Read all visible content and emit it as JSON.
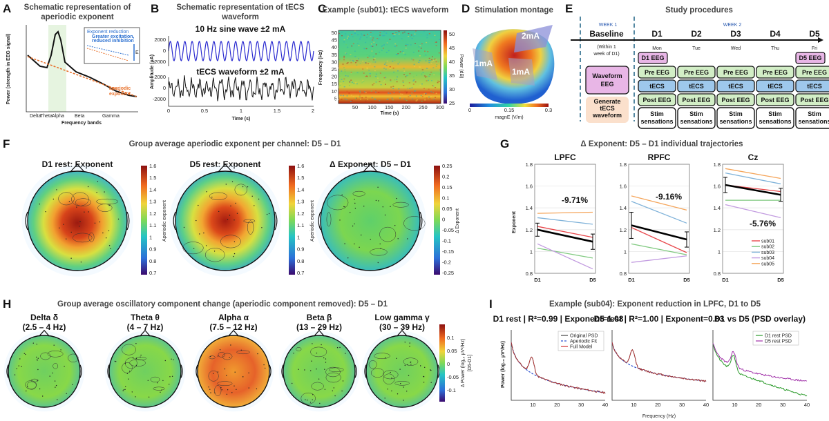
{
  "panels": {
    "A": {
      "label": "A",
      "title": [
        "Schematic representation of",
        "aperiodic exponent"
      ],
      "ylabel": "Power (strength in EEG signal)",
      "xlabel": "Frequency bands",
      "bands": [
        "Delta",
        "Theta",
        "Alpha",
        "Beta",
        "Gamma"
      ],
      "aperiodic_label": [
        "aperiodic",
        "exponent"
      ],
      "inset": [
        "Exponent reduction",
        "Greater excitation,",
        "reduced inhibition"
      ],
      "inset_e": "E"
    },
    "B": {
      "label": "B",
      "title": [
        "Schematic representation of tECS",
        "waveform"
      ],
      "sine_label": "10 Hz sine wave ±2 mA",
      "tecs_label": "tECS waveform ±2 mA",
      "ylabel": "Amplitude (μA)",
      "xlabel": "Time (s)",
      "yticks": [
        "2000",
        "0",
        "-2000",
        "2000",
        "0",
        "-2000"
      ],
      "xticks": [
        "0",
        "0.5",
        "1",
        "1.5",
        "2"
      ]
    },
    "C": {
      "label": "C",
      "title": "Example (sub01): tECS waveform",
      "ylabel": "Frequency (Hz)",
      "xlabel": "Time (s)",
      "yticks": [
        "50",
        "45",
        "40",
        "35",
        "30",
        "25",
        "20",
        "15",
        "10",
        "5"
      ],
      "xticks": [
        "50",
        "100",
        "150",
        "200",
        "250",
        "300"
      ],
      "bands": [
        "γ",
        "β",
        "α",
        "θ",
        "δ"
      ],
      "cbar_label": "Power (dB)",
      "cbar_ticks": [
        "50",
        "45",
        "40",
        "35",
        "30",
        "25"
      ]
    },
    "D": {
      "label": "D",
      "title": "Stimulation montage",
      "currents": [
        "2mA",
        "1mA",
        "1mA"
      ],
      "cbar_ticks": [
        "0",
        "0.15",
        "0.3"
      ],
      "cbar_label": "magnE (V/m)"
    },
    "E": {
      "label": "E",
      "title": "Study procedures",
      "week1": "WEEK 1",
      "week2": "WEEK 2",
      "baseline": "Baseline",
      "baseline_note": [
        "(Within 1",
        "week of D1)"
      ],
      "days": [
        "D1",
        "D2",
        "D3",
        "D4",
        "D5"
      ],
      "weekdays": [
        "Mon",
        "Tue",
        "Wed",
        "Thu",
        "Fri"
      ],
      "d1_eeg": "D1 EEG",
      "d5_eeg": "D5 EEG",
      "waveform_eeg": [
        "Waveform",
        "EEG"
      ],
      "generate": [
        "Generate",
        "tECS",
        "waveform"
      ],
      "pre": "Pre EEG",
      "tecs": "tECS",
      "post": "Post EEG",
      "stim": [
        "Stim",
        "sensations"
      ]
    },
    "F": {
      "label": "F",
      "title": "Group average aperiodic exponent per channel: D5 – D1",
      "maps": [
        {
          "title": "D1 rest: Exponent",
          "cbar_label": "Aperiodic exponent",
          "ticks": [
            "1.6",
            "1.5",
            "1.4",
            "1.3",
            "1.2",
            "1.1",
            "1",
            "0.9",
            "0.8",
            "0.7"
          ]
        },
        {
          "title": "D5 rest: Exponent",
          "cbar_label": "Aperiodic exponent",
          "ticks": [
            "1.6",
            "1.5",
            "1.4",
            "1.3",
            "1.2",
            "1.1",
            "1",
            "0.9",
            "0.8",
            "0.7"
          ]
        },
        {
          "title": "Δ Exponent: D5 – D1",
          "cbar_label": "Δ Exponent",
          "ticks": [
            "0.25",
            "0.2",
            "0.15",
            "0.1",
            "0.05",
            "0",
            "-0.05",
            "-0.1",
            "-0.15",
            "-0.2",
            "-0.25"
          ]
        }
      ]
    },
    "G": {
      "label": "G",
      "title": "Δ Exponent: D5 – D1 individual trajectories",
      "ylabel": "Exponent",
      "yticks": [
        "1.8",
        "1.6",
        "1.4",
        "1.2",
        "1",
        "0.8"
      ],
      "xticks": [
        "D1",
        "D5"
      ]
    },
    "H": {
      "label": "H",
      "title": "Group average oscillatory component change (aperiodic component removed): D5 – D1",
      "maps": [
        {
          "name": "Delta δ",
          "range": "(2.5 – 4 Hz)"
        },
        {
          "name": "Theta θ",
          "range": "(4 – 7 Hz)"
        },
        {
          "name": "Alpha α",
          "range": "(7.5 – 12 Hz)"
        },
        {
          "name": "Beta β",
          "range": "(13 – 29 Hz)"
        },
        {
          "name": "Low gamma γ",
          "range": "(30 – 39 Hz)"
        }
      ],
      "cbar_label": [
        "Δ Power (log₁₀ μV²/Hz)",
        "[D5-D1]"
      ],
      "cbar_ticks": [
        "0.1",
        "0.05",
        "0",
        "-0.05",
        "-0.1"
      ]
    },
    "I": {
      "label": "I",
      "title": "Example (sub04): Exponent reduction in LPFC, D1 to D5",
      "ylabel": "Power (log₁₀ μV²/Hz)",
      "xlabel": "Frequency (Hz)",
      "xticks": [
        "10",
        "20",
        "30",
        "40"
      ],
      "subplots": [
        {
          "title": "D1 rest | R²=0.99 | Exponent=1.08",
          "legend": [
            "Original PSD",
            "Aperiodic Fit",
            "Full Model"
          ]
        },
        {
          "title": "D5 rest | R²=1.00 | Exponent=0.83",
          "legend": []
        },
        {
          "title": "D1 vs D5 (PSD overlay)",
          "legend": [
            "D1 rest PSD",
            "D5 rest PSD"
          ]
        }
      ]
    }
  },
  "chart_data": [
    {
      "type": "line",
      "title": "LPFC",
      "categories": [
        "D1",
        "D5"
      ],
      "ylim": [
        0.8,
        1.8
      ],
      "annotation": "-9.71%",
      "series": [
        {
          "name": "sub01",
          "color": "#e8474b",
          "values": [
            1.23,
            1.13
          ]
        },
        {
          "name": "sub02",
          "color": "#7fc97f",
          "values": [
            1.03,
            0.94
          ]
        },
        {
          "name": "sub03",
          "color": "#7fb2d9",
          "values": [
            1.31,
            1.25
          ]
        },
        {
          "name": "sub04",
          "color": "#c29be0",
          "values": [
            1.07,
            0.84
          ]
        },
        {
          "name": "sub05",
          "color": "#f5a55a",
          "values": [
            1.35,
            1.36
          ]
        },
        {
          "name": "",
          "color": "#000000",
          "values": [
            1.2,
            1.09
          ],
          "error": [
            0.06,
            0.07
          ]
        }
      ]
    },
    {
      "type": "line",
      "title": "RPFC",
      "categories": [
        "D1",
        "D5"
      ],
      "ylim": [
        0.8,
        1.8
      ],
      "annotation": "-9.16%",
      "series": [
        {
          "name": "sub01",
          "color": "#e8474b",
          "values": [
            1.22,
            0.99
          ]
        },
        {
          "name": "sub02",
          "color": "#7fc97f",
          "values": [
            1.07,
            0.97
          ]
        },
        {
          "name": "sub03",
          "color": "#7fb2d9",
          "values": [
            1.46,
            1.26
          ]
        },
        {
          "name": "sub04",
          "color": "#c29be0",
          "values": [
            0.9,
            0.96
          ]
        },
        {
          "name": "sub05",
          "color": "#f5a55a",
          "values": [
            1.51,
            1.38
          ]
        },
        {
          "name": "",
          "color": "#000000",
          "values": [
            1.24,
            1.11
          ],
          "error": [
            0.12,
            0.07
          ]
        }
      ]
    },
    {
      "type": "line",
      "title": "Cz",
      "categories": [
        "D1",
        "D5"
      ],
      "ylim": [
        0.8,
        1.8
      ],
      "annotation": "-5.76%",
      "legend": "bottom-right",
      "series": [
        {
          "name": "sub01",
          "color": "#e8474b",
          "values": [
            1.61,
            1.55
          ]
        },
        {
          "name": "sub02",
          "color": "#7fc97f",
          "values": [
            1.47,
            1.47
          ]
        },
        {
          "name": "sub03",
          "color": "#7fb2d9",
          "values": [
            1.72,
            1.62
          ]
        },
        {
          "name": "sub04",
          "color": "#c29be0",
          "values": [
            1.43,
            1.31
          ]
        },
        {
          "name": "sub05",
          "color": "#f5a55a",
          "values": [
            1.76,
            1.67
          ]
        },
        {
          "name": "",
          "color": "#000000",
          "values": [
            1.61,
            1.52
          ],
          "error": [
            0.07,
            0.06
          ]
        }
      ]
    }
  ]
}
